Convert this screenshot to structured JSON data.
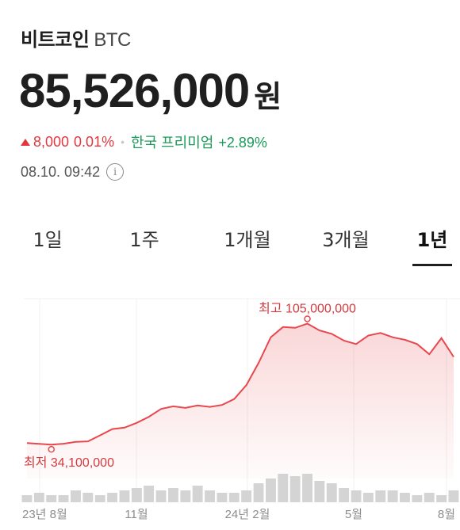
{
  "coin": {
    "name": "비트코인",
    "ticker": "BTC"
  },
  "price": {
    "value": "85,526,000",
    "currency": "원"
  },
  "change": {
    "amount": "8,000",
    "percent": "0.01%",
    "direction": "up"
  },
  "premium": {
    "label": "한국 프리미엄",
    "value": "+2.89%"
  },
  "timestamp": "08.10. 09:42",
  "tabs": [
    {
      "label": "1일",
      "active": false
    },
    {
      "label": "1주",
      "active": false
    },
    {
      "label": "1개월",
      "active": false
    },
    {
      "label": "3개월",
      "active": false
    },
    {
      "label": "1년",
      "active": true
    }
  ],
  "colors": {
    "up": "#e0383e",
    "premium": "#1b9a5a",
    "line": "#e8484d",
    "volume": "#d4d4d4"
  },
  "chart_data": {
    "type": "area",
    "x": [
      "2023-08",
      "2023-08",
      "2023-08",
      "2023-09",
      "2023-09",
      "2023-09",
      "2023-10",
      "2023-10",
      "2023-10",
      "2023-11",
      "2023-11",
      "2023-11",
      "2023-12",
      "2023-12",
      "2023-12",
      "2024-01",
      "2024-01",
      "2024-01",
      "2024-02",
      "2024-02",
      "2024-03",
      "2024-03",
      "2024-03",
      "2024-04",
      "2024-04",
      "2024-04",
      "2024-05",
      "2024-05",
      "2024-05",
      "2024-06",
      "2024-06",
      "2024-06",
      "2024-07",
      "2024-07",
      "2024-07",
      "2024-08"
    ],
    "values": [
      35.0,
      34.5,
      34.1,
      34.6,
      35.7,
      36.0,
      39.5,
      43.2,
      44.0,
      46.8,
      50.4,
      55.0,
      56.5,
      55.6,
      57.0,
      56.2,
      57.3,
      60.8,
      69.0,
      82.0,
      97.0,
      103.0,
      102.5,
      105.0,
      101.0,
      99.0,
      95.0,
      93.0,
      98.0,
      99.5,
      97.0,
      95.5,
      93.0,
      87.0,
      96.5,
      85.5
    ],
    "volume": [
      3,
      4,
      3,
      3,
      5,
      4,
      3,
      4,
      5,
      6,
      7,
      5,
      6,
      5,
      7,
      5,
      4,
      4,
      5,
      8,
      10,
      12,
      11,
      12,
      9,
      8,
      6,
      5,
      4,
      5,
      5,
      4,
      3,
      4,
      3,
      5
    ],
    "high": {
      "label": "최고 105,000,000",
      "value": 105.0
    },
    "low": {
      "label": "최저 34,100,000",
      "value": 34.1
    },
    "x_ticks": [
      "23년 8월",
      "11월",
      "24년 2월",
      "5월",
      "8월"
    ],
    "grid": true
  }
}
